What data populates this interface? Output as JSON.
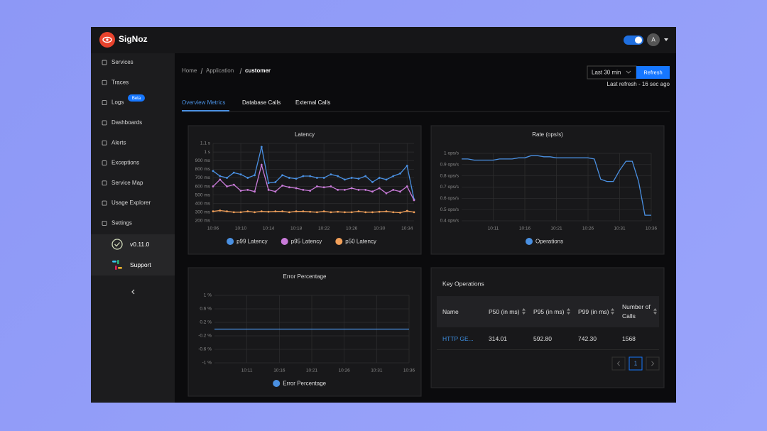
{
  "app": {
    "name": "SigNoz",
    "avatar": "A"
  },
  "sidebar": {
    "items": [
      "Services",
      "Traces",
      "Logs",
      "Dashboards",
      "Alerts",
      "Exceptions",
      "Service Map",
      "Usage Explorer",
      "Settings"
    ],
    "badge": "Beta",
    "version": "v0.11.0",
    "support": "Support"
  },
  "breadcrumb": [
    "Home",
    "Application",
    "customer"
  ],
  "time_range": "Last 30 min",
  "refresh_button": "Refresh",
  "last_refresh": "Last refresh - 16 sec ago",
  "tabs": [
    "Overview Metrics",
    "Database Calls",
    "External Calls"
  ],
  "chart_data": [
    {
      "type": "line",
      "title": "Latency",
      "markers": true,
      "grid": true,
      "legend": "bottom",
      "categories": [
        "10:06",
        null,
        null,
        null,
        "10:10",
        null,
        null,
        null,
        "10:14",
        null,
        null,
        null,
        "10:18",
        null,
        null,
        null,
        "10:22",
        null,
        null,
        null,
        "10:26",
        null,
        null,
        null,
        "10:30",
        null,
        null,
        null,
        "10:34",
        null
      ],
      "ylim": [
        200,
        1100
      ],
      "yticks": [
        {
          "value": 200,
          "label": "200 ms"
        },
        {
          "value": 300,
          "label": "300 ms"
        },
        {
          "value": 400,
          "label": "400 ms"
        },
        {
          "value": 500,
          "label": "500 ms"
        },
        {
          "value": 600,
          "label": "600 ms"
        },
        {
          "value": 700,
          "label": "700 ms"
        },
        {
          "value": 800,
          "label": "800 ms"
        },
        {
          "value": 900,
          "label": "900 ms"
        },
        {
          "value": 1000,
          "label": "1 s"
        },
        {
          "value": 1100,
          "label": "1.1 s"
        }
      ],
      "series": [
        {
          "name": "p99 Latency",
          "color": "#4a90e2",
          "values": [
            780,
            720,
            700,
            760,
            740,
            700,
            730,
            1060,
            640,
            650,
            730,
            700,
            690,
            720,
            720,
            700,
            700,
            740,
            720,
            680,
            700,
            690,
            720,
            650,
            700,
            680,
            720,
            750,
            840,
            450
          ]
        },
        {
          "name": "p95 Latency",
          "color": "#c97bd9",
          "values": [
            600,
            680,
            600,
            620,
            550,
            560,
            540,
            850,
            560,
            540,
            610,
            590,
            580,
            560,
            550,
            600,
            590,
            600,
            560,
            560,
            580,
            560,
            560,
            540,
            580,
            520,
            560,
            540,
            600,
            440
          ]
        },
        {
          "name": "p50 Latency",
          "color": "#f2a05a",
          "values": [
            310,
            320,
            310,
            300,
            300,
            310,
            300,
            310,
            305,
            310,
            310,
            300,
            310,
            310,
            305,
            300,
            310,
            300,
            305,
            300,
            300,
            310,
            300,
            300,
            305,
            310,
            300,
            295,
            315,
            300
          ]
        }
      ]
    },
    {
      "type": "line",
      "title": "Rate (ops/s)",
      "markers": false,
      "grid": true,
      "legend": "bottom",
      "categories": [
        null,
        null,
        null,
        null,
        null,
        "10:11",
        null,
        null,
        null,
        null,
        "10:16",
        null,
        null,
        null,
        null,
        "10:21",
        null,
        null,
        null,
        null,
        "10:26",
        null,
        null,
        null,
        null,
        "10:31",
        null,
        null,
        null,
        null,
        "10:36"
      ],
      "ylim": [
        0.4,
        1
      ],
      "yticks": [
        {
          "value": 0.4,
          "label": "0.4 ops/s"
        },
        {
          "value": 0.5,
          "label": "0.5 ops/s"
        },
        {
          "value": 0.6,
          "label": "0.6 ops/s"
        },
        {
          "value": 0.7,
          "label": "0.7 ops/s"
        },
        {
          "value": 0.8,
          "label": "0.8 ops/s"
        },
        {
          "value": 0.9,
          "label": "0.9 ops/s"
        },
        {
          "value": 1,
          "label": "1 ops/s"
        }
      ],
      "series": [
        {
          "name": "Operations",
          "color": "#4a90e2",
          "values": [
            0.95,
            0.95,
            0.94,
            0.94,
            0.94,
            0.94,
            0.95,
            0.95,
            0.95,
            0.96,
            0.96,
            0.98,
            0.98,
            0.97,
            0.97,
            0.96,
            0.96,
            0.96,
            0.96,
            0.96,
            0.96,
            0.95,
            0.77,
            0.75,
            0.75,
            0.85,
            0.93,
            0.93,
            0.75,
            0.45,
            0.45
          ]
        }
      ]
    },
    {
      "type": "line",
      "title": "Error Percentage",
      "markers": false,
      "grid": true,
      "legend": "bottom",
      "categories": [
        null,
        null,
        null,
        null,
        null,
        "10:11",
        null,
        null,
        null,
        null,
        "10:16",
        null,
        null,
        null,
        null,
        "10:21",
        null,
        null,
        null,
        null,
        "10:26",
        null,
        null,
        null,
        null,
        "10:31",
        null,
        null,
        null,
        null,
        "10:36"
      ],
      "ylim": [
        -1,
        1
      ],
      "yticks": [
        {
          "value": -1,
          "label": "-1 %"
        },
        {
          "value": -0.6,
          "label": "-0.6 %"
        },
        {
          "value": -0.2,
          "label": "-0.2 %"
        },
        {
          "value": 0.2,
          "label": "0.2 %"
        },
        {
          "value": 0.6,
          "label": "0.6 %"
        },
        {
          "value": 1,
          "label": "1 %"
        }
      ],
      "series": [
        {
          "name": "Error Percentage",
          "color": "#4a90e2",
          "values": [
            0,
            0,
            0,
            0,
            0,
            0,
            0,
            0,
            0,
            0,
            0,
            0,
            0,
            0,
            0,
            0,
            0,
            0,
            0,
            0,
            0,
            0,
            0,
            0,
            0,
            0,
            0,
            0,
            0,
            0,
            0
          ]
        }
      ]
    }
  ],
  "key_operations": {
    "title": "Key Operations",
    "columns": [
      "Name",
      "P50 (in ms)",
      "P95 (in ms)",
      "P99 (in ms)",
      "Number of Calls"
    ],
    "rows": [
      [
        "HTTP GE...",
        "314.01",
        "592.80",
        "742.30",
        "1568"
      ]
    ],
    "page": 1
  }
}
